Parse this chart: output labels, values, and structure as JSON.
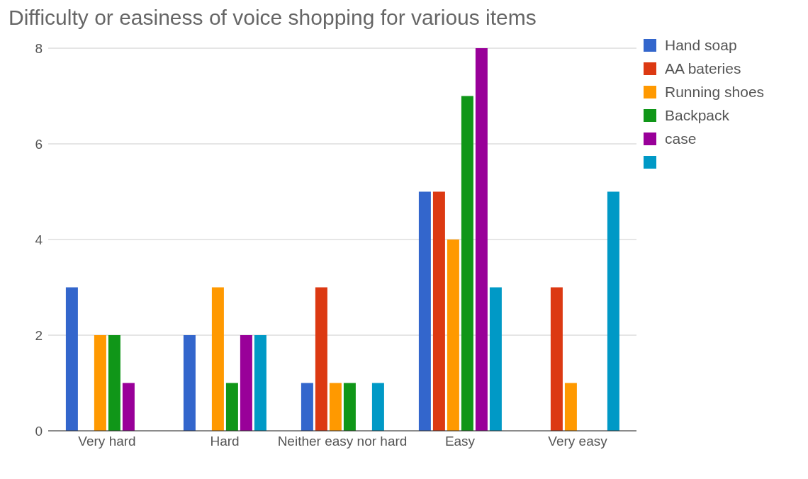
{
  "chart_data": {
    "type": "bar",
    "title": "Difficulty or easiness of voice shopping for various items",
    "categories": [
      "Very hard",
      "Hard",
      "Neither easy nor hard",
      "Easy",
      "Very easy"
    ],
    "series": [
      {
        "name": "Hand soap",
        "color": "#3366cc",
        "values": [
          3,
          2,
          1,
          5,
          0
        ]
      },
      {
        "name": "AA bateries",
        "color": "#dc3912",
        "values": [
          0,
          0,
          3,
          5,
          3
        ]
      },
      {
        "name": "Running shoes",
        "color": "#ff9900",
        "values": [
          2,
          3,
          1,
          4,
          1
        ]
      },
      {
        "name": "Backpack",
        "color": "#109618",
        "values": [
          2,
          1,
          1,
          7,
          0
        ]
      },
      {
        "name": "case",
        "color": "#990099",
        "values": [
          1,
          2,
          0,
          8,
          0
        ]
      },
      {
        "color": "#0099c6",
        "values": [
          0,
          2,
          1,
          3,
          5
        ]
      }
    ],
    "ylim": [
      0,
      8
    ],
    "yticks": [
      0,
      2,
      4,
      6,
      8
    ],
    "grid": "y",
    "legend": "right"
  }
}
